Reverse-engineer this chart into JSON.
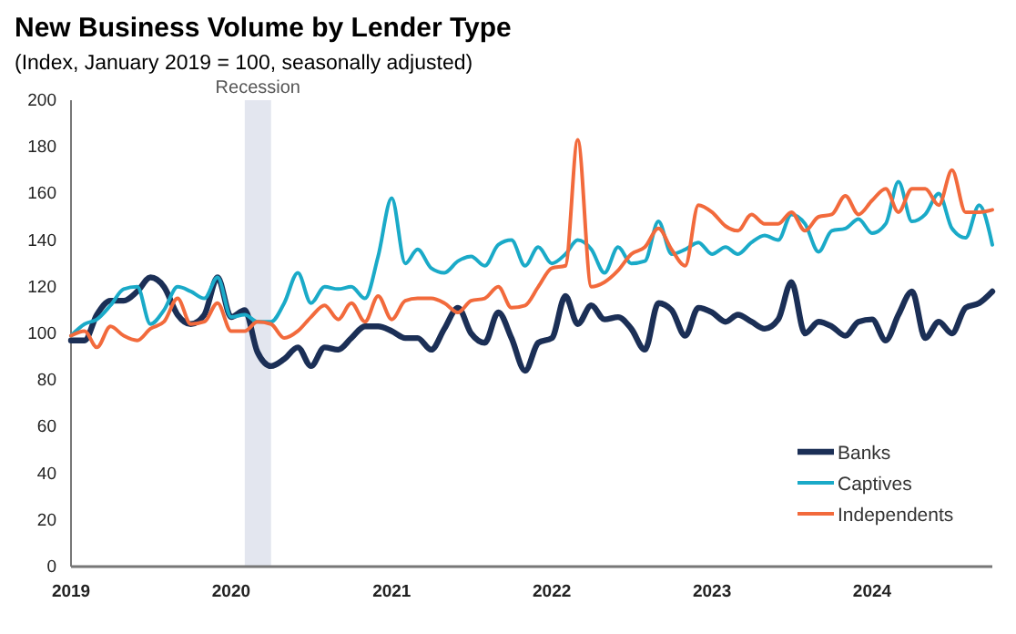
{
  "chart_data": {
    "type": "line",
    "title": "New Business Volume by Lender Type",
    "subtitle": "(Index, January 2019 = 100, seasonally adjusted)",
    "x": [
      "2019-01",
      "2019-02",
      "2019-03",
      "2019-04",
      "2019-05",
      "2019-06",
      "2019-07",
      "2019-08",
      "2019-09",
      "2019-10",
      "2019-11",
      "2019-12",
      "2020-01",
      "2020-02",
      "2020-03",
      "2020-04",
      "2020-05",
      "2020-06",
      "2020-07",
      "2020-08",
      "2020-09",
      "2020-10",
      "2020-11",
      "2020-12",
      "2021-01",
      "2021-02",
      "2021-03",
      "2021-04",
      "2021-05",
      "2021-06",
      "2021-07",
      "2021-08",
      "2021-09",
      "2021-10",
      "2021-11",
      "2021-12",
      "2022-01",
      "2022-02",
      "2022-03",
      "2022-04",
      "2022-05",
      "2022-06",
      "2022-07",
      "2022-08",
      "2022-09",
      "2022-10",
      "2022-11",
      "2022-12",
      "2023-01",
      "2023-02",
      "2023-03",
      "2023-04",
      "2023-05",
      "2023-06",
      "2023-07",
      "2023-08",
      "2023-09",
      "2023-10",
      "2023-11",
      "2023-12",
      "2024-01",
      "2024-02",
      "2024-03",
      "2024-04",
      "2024-05",
      "2024-06",
      "2024-07",
      "2024-08",
      "2024-09",
      "2024-10"
    ],
    "series": [
      {
        "name": "Banks",
        "color": "#1b2f56",
        "values": [
          97,
          97,
          108,
          114,
          114,
          118,
          124,
          120,
          108,
          104,
          108,
          124,
          107,
          110,
          92,
          86,
          89,
          94,
          86,
          94,
          93,
          98,
          103,
          103,
          101,
          98,
          98,
          93,
          102,
          111,
          100,
          96,
          109,
          98,
          84,
          96,
          98,
          116,
          104,
          112,
          106,
          107,
          102,
          93,
          113,
          110,
          99,
          111,
          109,
          105,
          108,
          105,
          102,
          106,
          122,
          100,
          105,
          103,
          99,
          105,
          106,
          97,
          108,
          118,
          98,
          105,
          100,
          111,
          113,
          118
        ]
      },
      {
        "name": "Captives",
        "color": "#1aaac8",
        "values": [
          99,
          104,
          106,
          112,
          119,
          120,
          104,
          110,
          120,
          118,
          115,
          124,
          107,
          108,
          105,
          105,
          113,
          126,
          113,
          120,
          119,
          120,
          115,
          133,
          158,
          130,
          136,
          128,
          126,
          131,
          133,
          129,
          138,
          140,
          129,
          137,
          130,
          134,
          140,
          136,
          126,
          137,
          130,
          131,
          148,
          134,
          136,
          139,
          134,
          137,
          134,
          139,
          142,
          140,
          151,
          147,
          135,
          144,
          145,
          149,
          143,
          147,
          165,
          148,
          151,
          160,
          145,
          141,
          155,
          138
        ]
      },
      {
        "name": "Independents",
        "color": "#f26a3c",
        "values": [
          99,
          101,
          94,
          103,
          99,
          97,
          102,
          105,
          115,
          104,
          105,
          113,
          101,
          101,
          105,
          104,
          98,
          101,
          107,
          112,
          106,
          113,
          105,
          116,
          106,
          114,
          115,
          115,
          113,
          109,
          114,
          115,
          120,
          111,
          112,
          120,
          128,
          129,
          183,
          120,
          122,
          127,
          134,
          137,
          145,
          136,
          129,
          155,
          152,
          146,
          144,
          151,
          147,
          147,
          152,
          144,
          150,
          151,
          159,
          151,
          157,
          162,
          152,
          162,
          162,
          155,
          170,
          152,
          152,
          153
        ]
      }
    ],
    "xlim": [
      "2019-01",
      "2024-10"
    ],
    "xticks": [
      {
        "value": "2019-01",
        "label": "2019"
      },
      {
        "value": "2020-01",
        "label": "2020"
      },
      {
        "value": "2021-01",
        "label": "2021"
      },
      {
        "value": "2022-01",
        "label": "2022"
      },
      {
        "value": "2023-01",
        "label": "2023"
      },
      {
        "value": "2024-01",
        "label": "2024"
      }
    ],
    "ylim": [
      0,
      200
    ],
    "yticks": [
      0,
      20,
      40,
      60,
      80,
      100,
      120,
      140,
      160,
      180,
      200
    ],
    "bands": [
      {
        "axis": "x",
        "from": "2020-02",
        "to": "2020-04",
        "label": "Recession",
        "color": "#e3e6ef"
      }
    ],
    "legend": "bottom right",
    "grid": false,
    "marker": "none",
    "line_style": "solid"
  }
}
